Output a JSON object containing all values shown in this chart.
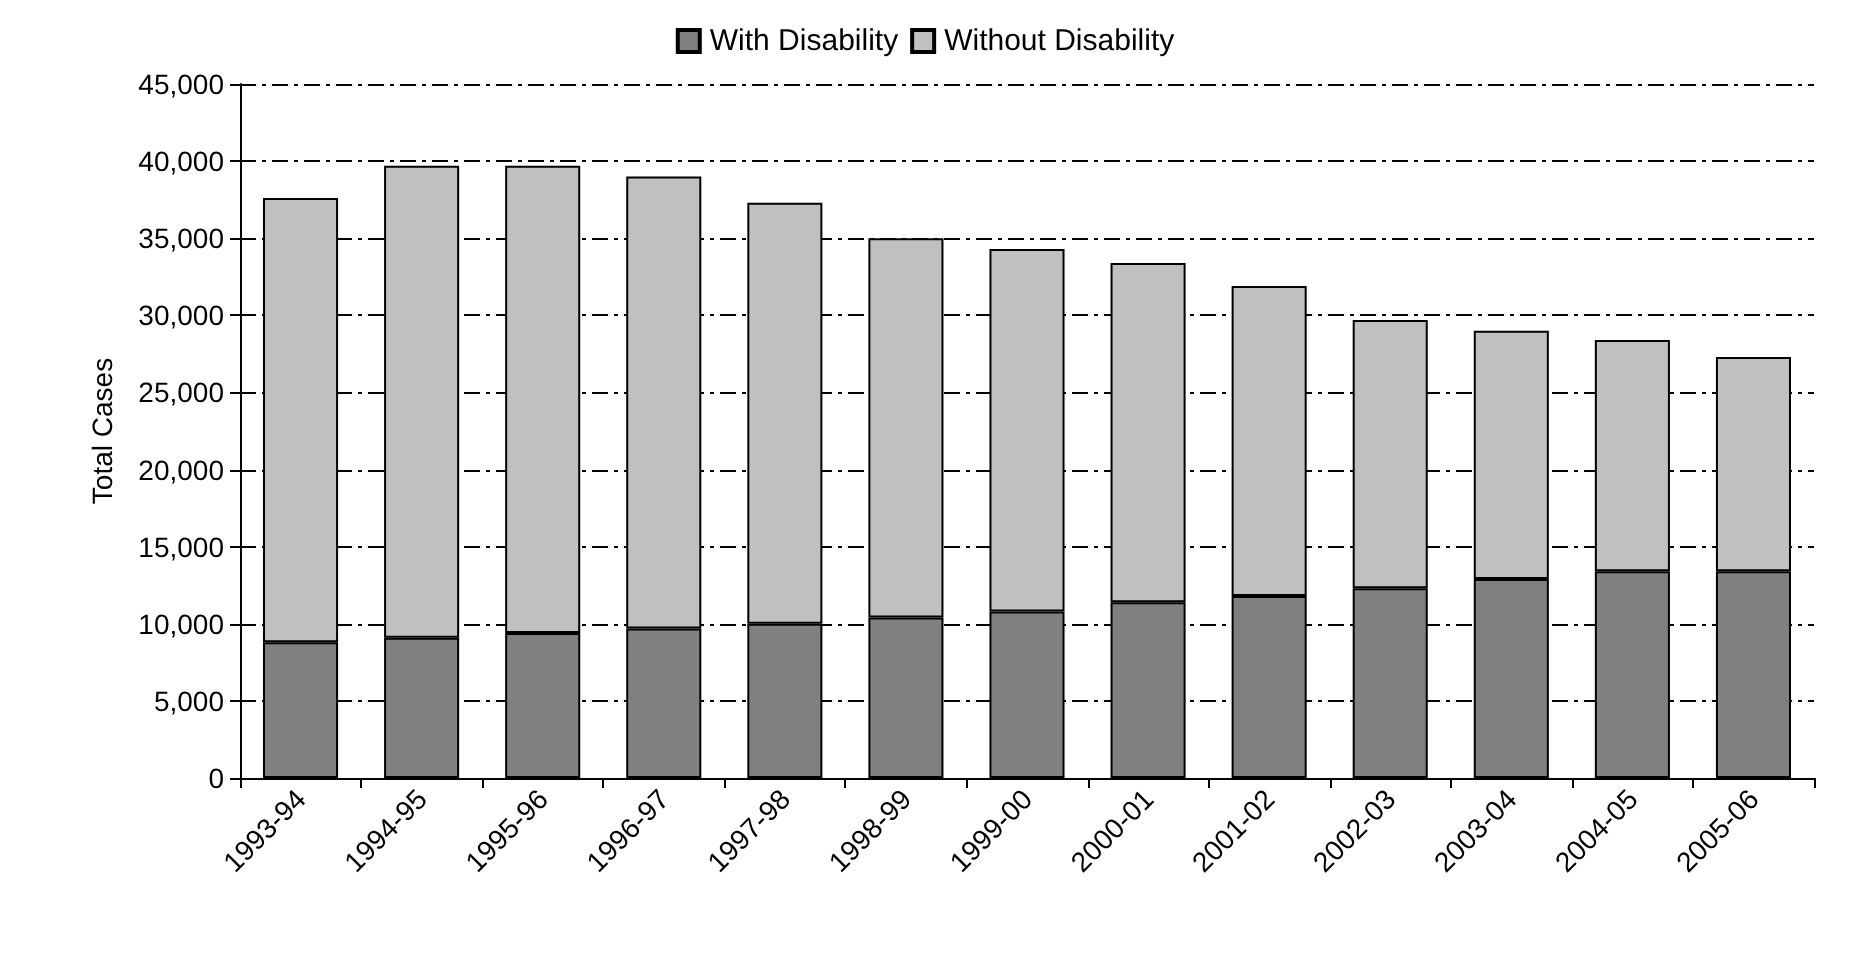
{
  "chart_data": {
    "type": "bar",
    "stacked": true,
    "ylabel": "Total Cases",
    "categories": [
      "1993-94",
      "1994-95",
      "1995-96",
      "1996-97",
      "1997-98",
      "1998-99",
      "1999-00",
      "2000-01",
      "2001-02",
      "2002-03",
      "2003-04",
      "2004-05",
      "2005-06"
    ],
    "series": [
      {
        "name": "With Disability",
        "color": "#808080",
        "values": [
          8800,
          9100,
          9400,
          9700,
          10000,
          10400,
          10800,
          11400,
          11800,
          12300,
          12900,
          13400,
          13400
        ]
      },
      {
        "name": "Without Disability",
        "color": "#c0c0c0",
        "values": [
          28800,
          30600,
          30300,
          29300,
          27300,
          24600,
          23500,
          22000,
          20100,
          17400,
          16100,
          15000,
          13900
        ]
      }
    ],
    "ylim": [
      0,
      45000
    ],
    "yticks": [
      0,
      {
        "value": 5000,
        "label": "5,000"
      },
      {
        "value": 10000,
        "label": "10,000"
      },
      {
        "value": 15000,
        "label": "15,000"
      },
      {
        "value": 20000,
        "label": "20,000"
      },
      {
        "value": 25000,
        "label": "25,000"
      },
      {
        "value": 30000,
        "label": "30,000"
      },
      {
        "value": 35000,
        "label": "35,000"
      },
      {
        "value": 40000,
        "label": "40,000"
      },
      {
        "value": 45000,
        "label": "45,000"
      }
    ],
    "grid": "y",
    "legend": "top"
  }
}
